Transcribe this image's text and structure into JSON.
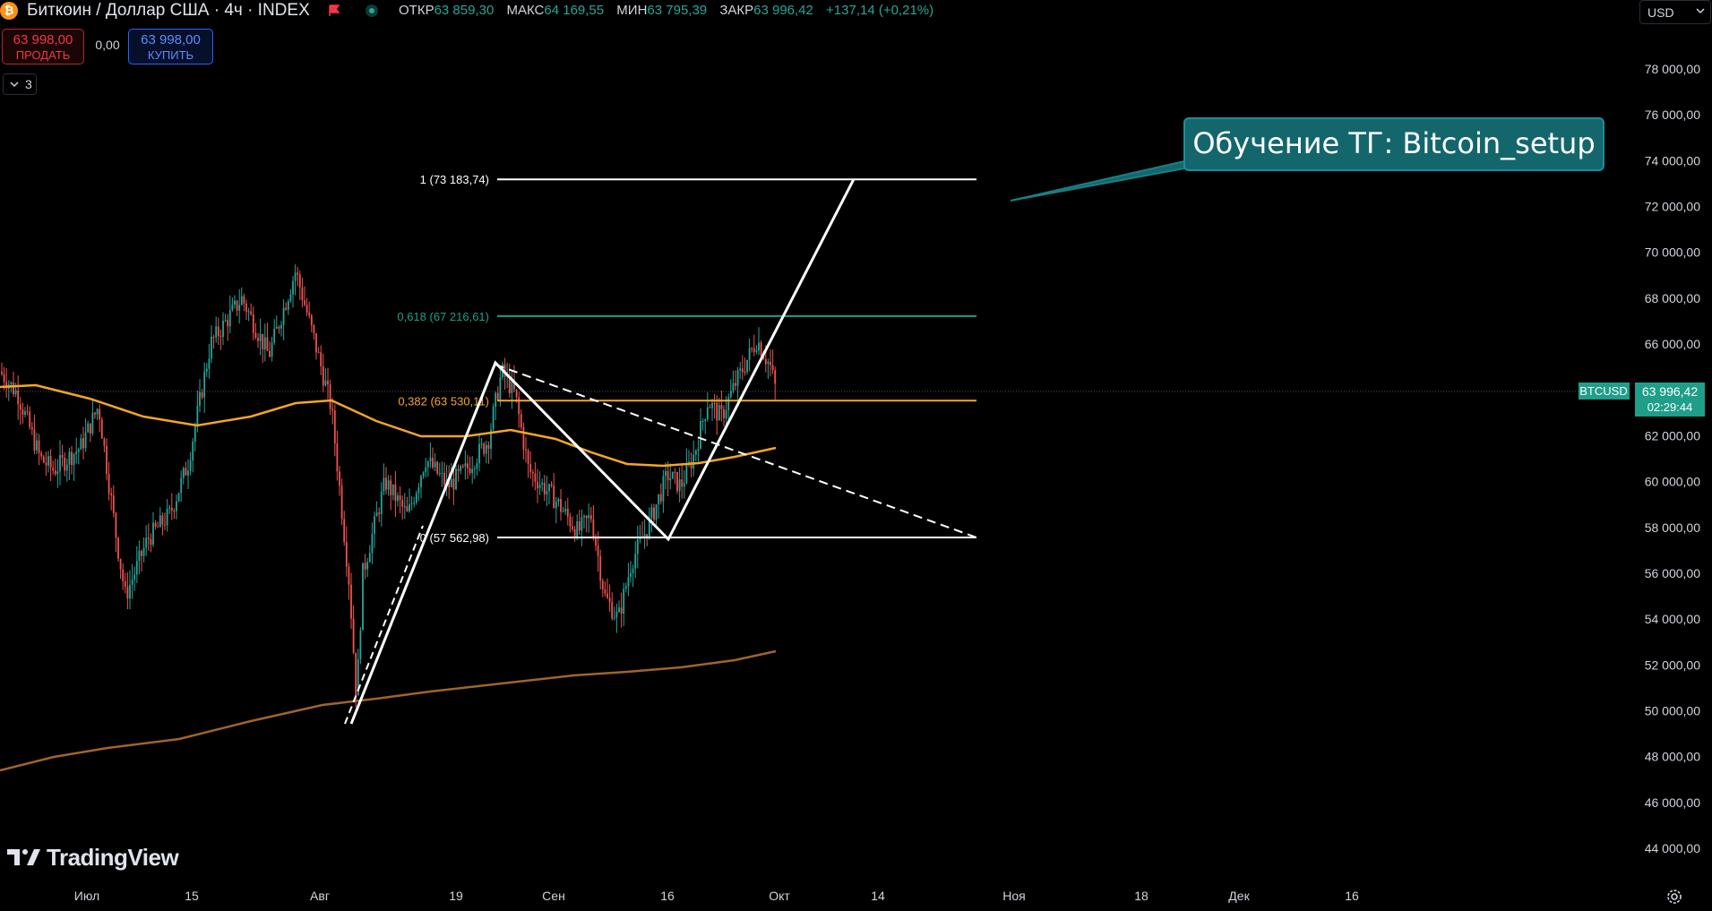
{
  "header": {
    "symbol_title": "Биткоин / Доллар США · 4ч · INDEX",
    "ohlc": [
      {
        "key": "ОТКР",
        "value": "63 859,30"
      },
      {
        "key": "МАКС",
        "value": "64 169,55"
      },
      {
        "key": "МИН",
        "value": "63 795,39"
      },
      {
        "key": "ЗАКР",
        "value": "63 996,42"
      },
      {
        "key": "",
        "value": "+137,14 (+0,21%)"
      }
    ]
  },
  "trade": {
    "sell_price": "63 998,00",
    "sell_label": "ПРОДАТЬ",
    "spread": "0,00",
    "buy_price": "63 998,00",
    "buy_label": "КУПИТЬ"
  },
  "indicators_collapse": {
    "count": "3"
  },
  "currency": "USD",
  "price_axis": {
    "ticks": [
      "78 000,00",
      "76 000,00",
      "74 000,00",
      "72 000,00",
      "70 000,00",
      "68 000,00",
      "66 000,00",
      "64 000,00",
      "62 000,00",
      "60 000,00",
      "58 000,00",
      "56 000,00",
      "54 000,00",
      "52 000,00",
      "50 000,00",
      "48 000,00",
      "46 000,00",
      "44 000,00"
    ],
    "symbol_label": "BTCUSD",
    "last_price": "63 996,42",
    "countdown": "02:29:44"
  },
  "time_axis": {
    "ticks": [
      "Июл",
      "15",
      "Авг",
      "19",
      "Сен",
      "16",
      "Окт",
      "14",
      "Ноя",
      "18",
      "Дек",
      "16"
    ]
  },
  "fib_levels": [
    {
      "label": "1 (73 183,74)",
      "price": 73183.74,
      "color": "#ffffff"
    },
    {
      "label": "0,618 (67 216,61)",
      "price": 67216.61,
      "color": "#1f9e89"
    },
    {
      "label": "0,382 (63 530,11)",
      "price": 63530.11,
      "color": "#f5a623"
    },
    {
      "label": "0 (57 562,98)",
      "price": 57562.98,
      "color": "#ffffff"
    }
  ],
  "annotation": "Обучение ТГ: Bitcoin_setup",
  "brand": "TradingView",
  "colors": {
    "up": "#26a69a",
    "down": "#ef5350",
    "ma_orange": "#f5a623",
    "ma_brown": "#a0642c",
    "callout": "#1a7f86"
  }
}
